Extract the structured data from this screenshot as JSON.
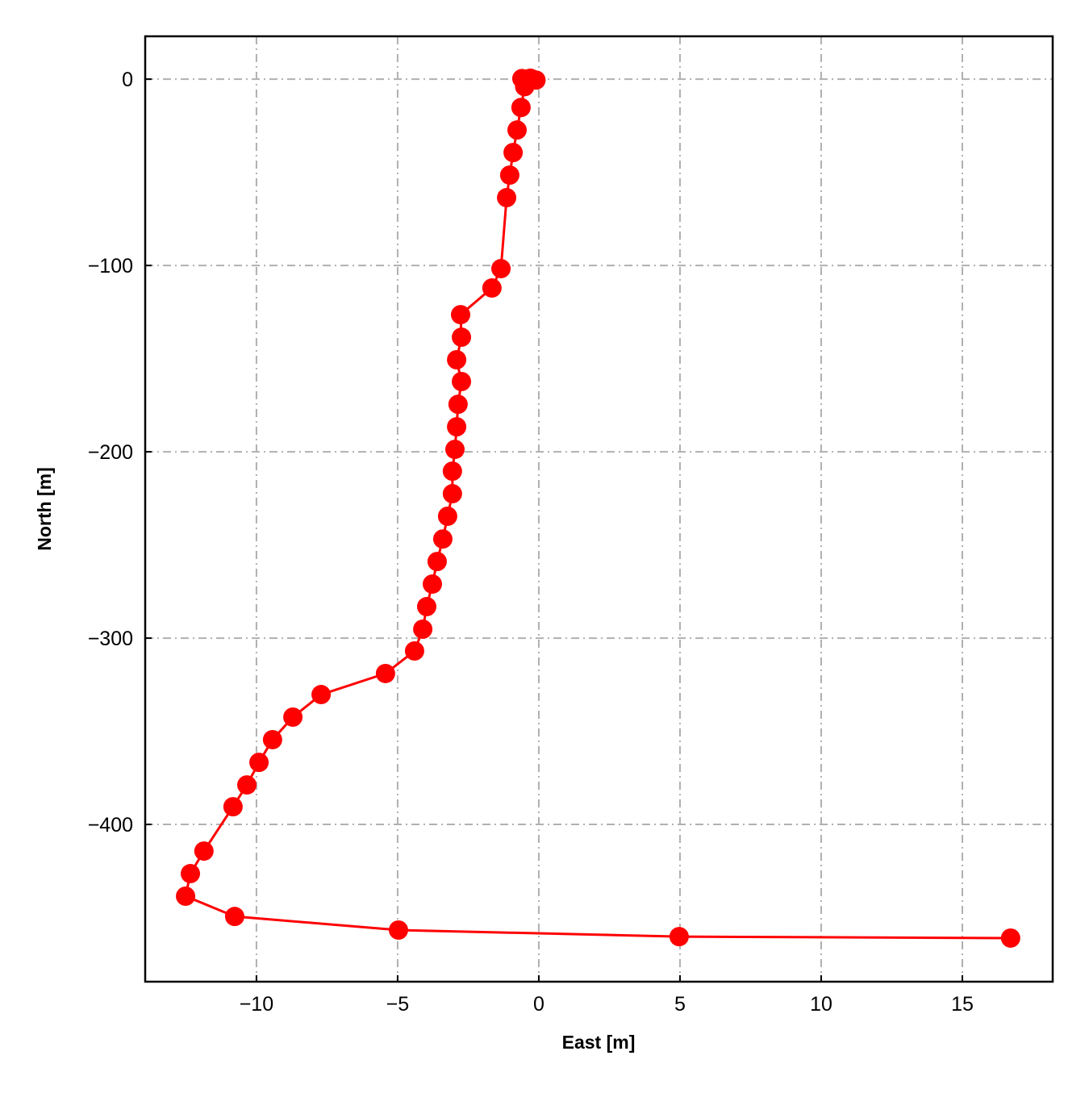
{
  "chart_data": {
    "type": "line",
    "xlabel": "East [m]",
    "ylabel": "North [m]",
    "x": [
      -0.1,
      -0.3,
      -0.5,
      -0.6,
      -0.5,
      -0.63,
      -0.77,
      -0.91,
      -1.03,
      -1.14,
      -1.34,
      -1.66,
      -2.77,
      -2.74,
      -2.91,
      -2.74,
      -2.86,
      -2.91,
      -2.97,
      -3.06,
      -3.06,
      -3.23,
      -3.4,
      -3.6,
      -3.77,
      -3.97,
      -4.11,
      -4.4,
      -5.43,
      -7.71,
      -8.71,
      -9.43,
      -9.91,
      -10.34,
      -10.83,
      -11.86,
      -12.34,
      -12.51,
      -10.77,
      -4.97,
      4.97,
      16.71
    ],
    "series": [
      {
        "color": "#ff0000",
        "values": [
          -0.5,
          0.5,
          0,
          0.3,
          -4,
          -15.2,
          -27.3,
          -39.4,
          -51.5,
          -63.6,
          -101.7,
          -112.1,
          -126.4,
          -138.5,
          -150.6,
          -162.3,
          -174.5,
          -186.6,
          -198.7,
          -210.4,
          -222.5,
          -234.6,
          -246.8,
          -258.9,
          -271.0,
          -283.1,
          -295.2,
          -306.9,
          -319.0,
          -330.3,
          -342.4,
          -354.5,
          -366.7,
          -378.8,
          -390.5,
          -414.3,
          -426.4,
          -438.5,
          -449.4,
          -456.7,
          -460.2,
          -461.0
        ]
      }
    ],
    "xlim": [
      -13.94,
      18.2
    ],
    "xticks": [
      {
        "value": -10,
        "label": "−10"
      },
      {
        "value": -5,
        "label": "−5"
      },
      0,
      5,
      10,
      15
    ],
    "ylim": [
      -484.4,
      23
    ],
    "yticks": [
      {
        "value": -400,
        "label": "−400"
      },
      {
        "value": -300,
        "label": "−300"
      },
      {
        "value": -200,
        "label": "−200"
      },
      {
        "value": -100,
        "label": "−100"
      },
      0
    ],
    "grid": true
  }
}
